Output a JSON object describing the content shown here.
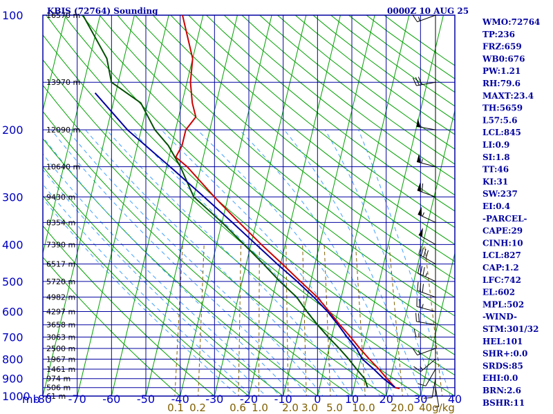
{
  "header": {
    "station_title": "KBIS (72764) Sounding",
    "time_label": "0000Z 10 AUG 25"
  },
  "indices": [
    "WMO:72764",
    "TP:236",
    "FRZ:659",
    "WB0:676",
    "PW:1.21",
    "RH:79.6",
    "MAXT:23.4",
    "TH:5659",
    "L57:5.6",
    "LCL:845",
    "LI:0.9",
    "SI:1.8",
    "TT:46",
    "KI:31",
    "SW:237",
    "EI:0.4",
    "-PARCEL-",
    "CAPE:29",
    "CINH:10",
    "LCL:827",
    "CAP:1.2",
    "LFC:742",
    "EL:602",
    "MPL:502",
    "-WIND-",
    "STM:301/32",
    "HEL:101",
    "SHR+:0.0",
    "SRDS:85",
    "EHI:0.0",
    "BRN:2.6",
    "BSHR:11"
  ],
  "chart_data": {
    "type": "line",
    "title": "KBIS (72764) Sounding",
    "subtitle": "0000Z 10 AUG 25",
    "xlabel": "",
    "ylabel": "mb",
    "y_scale": "log",
    "x_ticks": [
      -80,
      -70,
      -60,
      -50,
      -40,
      -30,
      -20,
      -10,
      0,
      10,
      20,
      30,
      40
    ],
    "xlim": [
      -80,
      40
    ],
    "ylim": [
      1000,
      100
    ],
    "pressure_ticks": [
      100,
      200,
      300,
      400,
      500,
      600,
      700,
      800,
      900,
      1000
    ],
    "height_labels": [
      {
        "p": 100,
        "label": "16570 m"
      },
      {
        "p": 150,
        "label": "13970 m"
      },
      {
        "p": 200,
        "label": "12090 m"
      },
      {
        "p": 250,
        "label": "10640 m"
      },
      {
        "p": 300,
        "label": "9430 m"
      },
      {
        "p": 350,
        "label": "8354 m"
      },
      {
        "p": 400,
        "label": "7390 m"
      },
      {
        "p": 450,
        "label": "6517 m"
      },
      {
        "p": 500,
        "label": "5720 m"
      },
      {
        "p": 550,
        "label": "4982 m"
      },
      {
        "p": 600,
        "label": "4297 m"
      },
      {
        "p": 650,
        "label": "3658 m"
      },
      {
        "p": 700,
        "label": "3063 m"
      },
      {
        "p": 750,
        "label": "2500 m"
      },
      {
        "p": 800,
        "label": "1967 m"
      },
      {
        "p": 850,
        "label": "1461 m"
      },
      {
        "p": 900,
        "label": "974 m"
      },
      {
        "p": 950,
        "label": "506 m"
      },
      {
        "p": 1000,
        "label": "61 m"
      }
    ],
    "mixing_ratio_labels": [
      "0.1",
      "0.2",
      "0.6",
      "1.0",
      "2.0",
      "3.0",
      "5.0",
      "10.0",
      "20.0",
      "40g/kg"
    ],
    "series": [
      {
        "name": "Temperature",
        "color": "#cc0000",
        "points": [
          {
            "p": 100,
            "t": -66
          },
          {
            "p": 130,
            "t": -60
          },
          {
            "p": 150,
            "t": -59
          },
          {
            "p": 170,
            "t": -57
          },
          {
            "p": 185,
            "t": -55
          },
          {
            "p": 200,
            "t": -57
          },
          {
            "p": 220,
            "t": -57
          },
          {
            "p": 236,
            "t": -58
          },
          {
            "p": 250,
            "t": -54
          },
          {
            "p": 300,
            "t": -44
          },
          {
            "p": 350,
            "t": -35
          },
          {
            "p": 400,
            "t": -27
          },
          {
            "p": 450,
            "t": -19.5
          },
          {
            "p": 500,
            "t": -13
          },
          {
            "p": 550,
            "t": -7
          },
          {
            "p": 600,
            "t": -2.5
          },
          {
            "p": 650,
            "t": 1.5
          },
          {
            "p": 700,
            "t": 5.5
          },
          {
            "p": 750,
            "t": 9
          },
          {
            "p": 800,
            "t": 12.5
          },
          {
            "p": 850,
            "t": 16
          },
          {
            "p": 900,
            "t": 19
          },
          {
            "p": 950,
            "t": 22
          },
          {
            "p": 956,
            "t": 23.4
          }
        ]
      },
      {
        "name": "Dewpoint",
        "color": "#005000",
        "points": [
          {
            "p": 100,
            "t": -95
          },
          {
            "p": 130,
            "t": -85
          },
          {
            "p": 150,
            "t": -82
          },
          {
            "p": 170,
            "t": -72
          },
          {
            "p": 200,
            "t": -66
          },
          {
            "p": 220,
            "t": -61
          },
          {
            "p": 250,
            "t": -56
          },
          {
            "p": 300,
            "t": -50
          },
          {
            "p": 350,
            "t": -40
          },
          {
            "p": 400,
            "t": -32
          },
          {
            "p": 450,
            "t": -25
          },
          {
            "p": 500,
            "t": -19
          },
          {
            "p": 550,
            "t": -13
          },
          {
            "p": 600,
            "t": -9
          },
          {
            "p": 650,
            "t": -5
          },
          {
            "p": 700,
            "t": -1
          },
          {
            "p": 750,
            "t": 3
          },
          {
            "p": 800,
            "t": 6.5
          },
          {
            "p": 850,
            "t": 9.5
          },
          {
            "p": 900,
            "t": 12.5
          },
          {
            "p": 950,
            "t": 14
          }
        ]
      },
      {
        "name": "Parcel",
        "color": "#0000a0",
        "points": [
          {
            "p": 160,
            "t": -86
          },
          {
            "p": 200,
            "t": -74
          },
          {
            "p": 250,
            "t": -59
          },
          {
            "p": 300,
            "t": -47
          },
          {
            "p": 350,
            "t": -37
          },
          {
            "p": 400,
            "t": -28.5
          },
          {
            "p": 450,
            "t": -21
          },
          {
            "p": 500,
            "t": -14
          },
          {
            "p": 550,
            "t": -8
          },
          {
            "p": 600,
            "t": -3
          },
          {
            "p": 650,
            "t": 1
          },
          {
            "p": 700,
            "t": 4.5
          },
          {
            "p": 750,
            "t": 8
          },
          {
            "p": 800,
            "t": 10.5
          },
          {
            "p": 850,
            "t": 14.5
          },
          {
            "p": 900,
            "t": 18
          },
          {
            "p": 950,
            "t": 22
          }
        ]
      }
    ],
    "wind_barbs": [
      {
        "p": 100,
        "dir": 250,
        "kt": 15
      },
      {
        "p": 150,
        "dir": 260,
        "kt": 30
      },
      {
        "p": 200,
        "dir": 280,
        "kt": 50
      },
      {
        "p": 250,
        "dir": 285,
        "kt": 55
      },
      {
        "p": 300,
        "dir": 290,
        "kt": 60
      },
      {
        "p": 350,
        "dir": 295,
        "kt": 55
      },
      {
        "p": 400,
        "dir": 300,
        "kt": 50
      },
      {
        "p": 450,
        "dir": 300,
        "kt": 40
      },
      {
        "p": 500,
        "dir": 295,
        "kt": 35
      },
      {
        "p": 550,
        "dir": 290,
        "kt": 30
      },
      {
        "p": 600,
        "dir": 285,
        "kt": 25
      },
      {
        "p": 650,
        "dir": 280,
        "kt": 20
      },
      {
        "p": 700,
        "dir": 270,
        "kt": 15
      },
      {
        "p": 750,
        "dir": 250,
        "kt": 15
      },
      {
        "p": 800,
        "dir": 230,
        "kt": 15
      },
      {
        "p": 850,
        "dir": 210,
        "kt": 10
      },
      {
        "p": 900,
        "dir": 190,
        "kt": 10
      },
      {
        "p": 950,
        "dir": 170,
        "kt": 5
      }
    ]
  },
  "colors": {
    "frame": "#0000a0",
    "dry_adiabats": "#00a000",
    "moist_adiabats": "#40a0ff",
    "mixing_ratio": "#806000",
    "background": "#ffffff"
  }
}
